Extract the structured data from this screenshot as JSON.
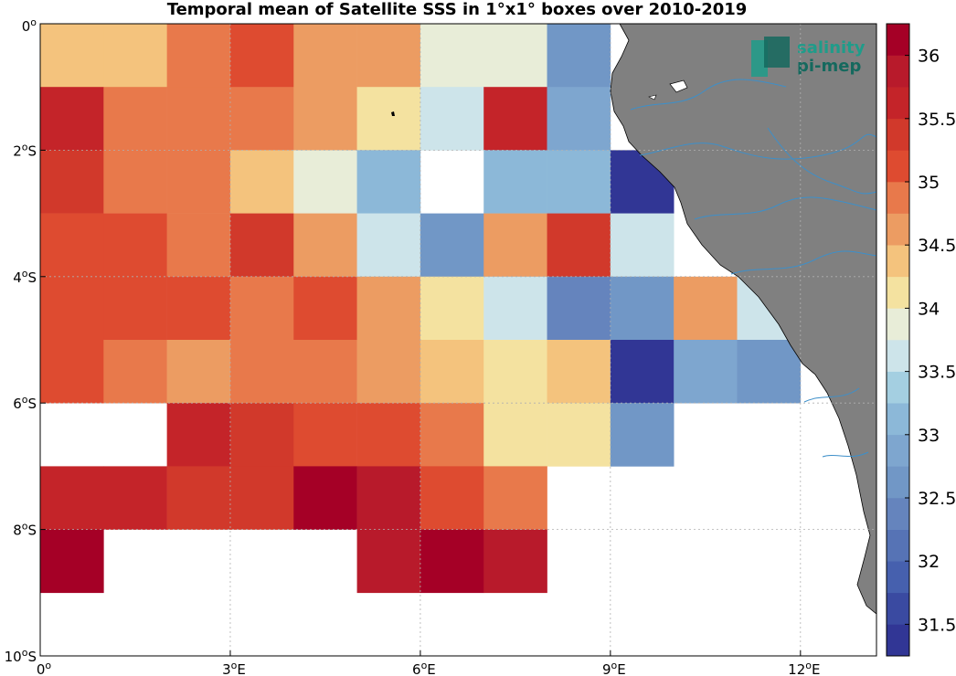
{
  "title": "Temporal mean of Satellite SSS in 1°x1° boxes over 2010-2019",
  "logo": {
    "line1": "salinity",
    "line2": "pi-mep"
  },
  "map": {
    "lon_range": [
      0,
      13.2
    ],
    "lat_range": [
      -10,
      0
    ],
    "x_ticks": [
      {
        "value": 0,
        "label": "0",
        "sup": "o",
        "suffix": ""
      },
      {
        "value": 3,
        "label": "3",
        "sup": "o",
        "suffix": "E"
      },
      {
        "value": 6,
        "label": "6",
        "sup": "o",
        "suffix": "E"
      },
      {
        "value": 9,
        "label": "9",
        "sup": "o",
        "suffix": "E"
      },
      {
        "value": 12,
        "label": "12",
        "sup": "o",
        "suffix": "E"
      }
    ],
    "y_ticks": [
      {
        "value": 0,
        "label": "0",
        "sup": "o",
        "suffix": ""
      },
      {
        "value": -2,
        "label": "2",
        "sup": "o",
        "suffix": "S"
      },
      {
        "value": -4,
        "label": "4",
        "sup": "o",
        "suffix": "S"
      },
      {
        "value": -6,
        "label": "6",
        "sup": "o",
        "suffix": "S"
      },
      {
        "value": -8,
        "label": "8",
        "sup": "o",
        "suffix": "S"
      },
      {
        "value": -10,
        "label": "10",
        "sup": "o",
        "suffix": "S"
      }
    ],
    "grid": true,
    "land_color": "#808080",
    "ocean_color": "#ffffff",
    "river_color": "#3d8fc9"
  },
  "chart_data": {
    "type": "heatmap",
    "title": "Temporal mean of Satellite SSS in 1°x1° boxes over 2010-2019",
    "lon_edges": [
      0,
      1,
      2,
      3,
      4,
      5,
      6,
      7,
      8,
      9,
      10,
      11,
      12
    ],
    "lat_rows": [
      "0 to 1S",
      "1S to 2S",
      "2S to 3S",
      "3S to 4S",
      "4S to 5S",
      "5S to 6S",
      "6S to 7S",
      "7S to 8S",
      "8S to 9S",
      "9S to 10S"
    ],
    "values": [
      [
        34.4,
        34.4,
        34.9,
        35.2,
        34.7,
        34.7,
        33.9,
        33.9,
        32.5,
        null,
        null,
        null
      ],
      [
        35.6,
        34.9,
        34.9,
        34.9,
        34.7,
        34.2,
        33.7,
        35.5,
        32.9,
        null,
        null,
        null
      ],
      [
        35.4,
        34.9,
        34.9,
        34.4,
        33.9,
        33.0,
        null,
        33.1,
        33.1,
        31.4,
        null,
        null
      ],
      [
        35.2,
        35.2,
        34.9,
        35.4,
        34.7,
        33.7,
        32.6,
        34.7,
        35.4,
        33.7,
        null,
        null
      ],
      [
        35.2,
        35.2,
        35.2,
        34.9,
        35.2,
        34.7,
        34.2,
        33.7,
        32.4,
        32.6,
        34.7,
        33.5
      ],
      [
        35.2,
        34.9,
        34.7,
        34.9,
        34.9,
        34.7,
        34.4,
        34.2,
        34.4,
        31.4,
        32.9,
        32.6
      ],
      [
        null,
        null,
        35.6,
        35.4,
        35.2,
        35.2,
        34.9,
        34.2,
        34.2,
        32.5,
        null,
        null
      ],
      [
        35.7,
        35.6,
        35.4,
        35.4,
        36.2,
        35.8,
        35.2,
        34.9,
        null,
        null,
        null,
        null
      ],
      [
        36.2,
        null,
        null,
        null,
        null,
        35.8,
        36.1,
        35.8,
        null,
        null,
        null,
        null
      ],
      [
        null,
        null,
        null,
        null,
        null,
        null,
        null,
        null,
        null,
        null,
        null,
        null
      ]
    ],
    "colorbar": {
      "range": [
        31.25,
        36.25
      ],
      "step": 0.25,
      "ticks": [
        31.5,
        32,
        32.5,
        33,
        33.5,
        34,
        34.5,
        35,
        35.5,
        36
      ],
      "tick_labels": [
        "31.5",
        "32",
        "32.5",
        "33",
        "33.5",
        "34",
        "34.5",
        "35",
        "35.5",
        "36"
      ],
      "colors": [
        "#313695",
        "#3a4aa1",
        "#4660ae",
        "#5673b5",
        "#6584bd",
        "#7197c6",
        "#7ea6cf",
        "#8cb8d8",
        "#a4cfe1",
        "#cde4ea",
        "#e8edd8",
        "#f4e2a0",
        "#f4c37d",
        "#ec9c62",
        "#e8794b",
        "#de4b30",
        "#d1392b",
        "#c42429",
        "#b81a2b",
        "#a50026"
      ]
    }
  }
}
